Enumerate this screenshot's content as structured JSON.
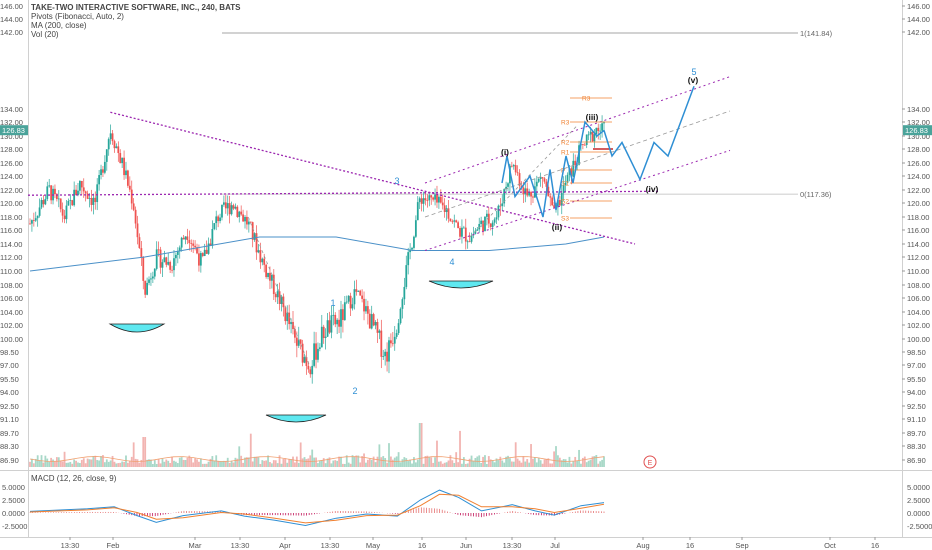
{
  "header": {
    "title": "TAKE-TWO INTERACTIVE SOFTWARE, INC., 240, BATS",
    "indicator1": "Pivots (Fibonacci, Auto, 2)",
    "indicator2": "MA (200, close)",
    "indicator3": "Vol (20)",
    "macd_label": "MACD (12, 26, close, 9)"
  },
  "colors": {
    "up": "#26a69a",
    "down": "#ef5350",
    "trendline": "#9c27b0",
    "ma": "#4a90c8",
    "projection": "#2f8fd4",
    "cup": "#5ee8f0",
    "pivot": "#f08030",
    "fib": "#777777"
  },
  "chart_data": [
    {
      "type": "candlestick",
      "title": "TAKE-TWO INTERACTIVE SOFTWARE, INC., 240, BATS",
      "ylim": [
        88.0,
        146.0
      ],
      "y_ticks": [
        "146.00",
        "144.00",
        "142.00",
        "134.00",
        "132.00",
        "130.00",
        "128.00",
        "126.00",
        "124.00",
        "122.00",
        "120.00",
        "118.00",
        "116.00",
        "114.00",
        "112.00",
        "110.00",
        "108.00",
        "106.00",
        "104.00",
        "102.00",
        "100.00",
        "98.50",
        "97.00",
        "95.50",
        "94.00",
        "92.50",
        "91.10",
        "89.70",
        "88.30",
        "86.90"
      ],
      "x_ticks": [
        "13:30",
        "Feb",
        "Mar",
        "13:30",
        "Apr",
        "13:30",
        "May",
        "16",
        "Jun",
        "13:30",
        "Jul",
        "Aug",
        "16",
        "Sep",
        "Oct",
        "16"
      ],
      "last_price": "126.83",
      "price_path": [
        {
          "t": 0,
          "p": 113
        },
        {
          "t": 5,
          "p": 118
        },
        {
          "t": 9,
          "p": 114
        },
        {
          "t": 13,
          "p": 119
        },
        {
          "t": 17,
          "p": 116
        },
        {
          "t": 21,
          "p": 127
        },
        {
          "t": 24,
          "p": 122
        },
        {
          "t": 27,
          "p": 116
        },
        {
          "t": 30,
          "p": 103
        },
        {
          "t": 33,
          "p": 108
        },
        {
          "t": 37,
          "p": 107
        },
        {
          "t": 41,
          "p": 112
        },
        {
          "t": 45,
          "p": 107
        },
        {
          "t": 49,
          "p": 114
        },
        {
          "t": 53,
          "p": 116
        },
        {
          "t": 57,
          "p": 113
        },
        {
          "t": 61,
          "p": 107
        },
        {
          "t": 65,
          "p": 102
        },
        {
          "t": 69,
          "p": 97
        },
        {
          "t": 73,
          "p": 94
        },
        {
          "t": 77,
          "p": 98
        },
        {
          "t": 81,
          "p": 99
        },
        {
          "t": 85,
          "p": 103
        },
        {
          "t": 89,
          "p": 99
        },
        {
          "t": 93,
          "p": 95
        },
        {
          "t": 96,
          "p": 99
        },
        {
          "t": 99,
          "p": 108
        },
        {
          "t": 102,
          "p": 117
        },
        {
          "t": 106,
          "p": 116
        },
        {
          "t": 109,
          "p": 115
        },
        {
          "t": 112,
          "p": 112
        },
        {
          "t": 115,
          "p": 111
        },
        {
          "t": 118,
          "p": 113
        },
        {
          "t": 122,
          "p": 114
        },
        {
          "t": 126,
          "p": 122
        },
        {
          "t": 130,
          "p": 117
        },
        {
          "t": 134,
          "p": 120
        },
        {
          "t": 137,
          "p": 114
        },
        {
          "t": 140,
          "p": 119
        },
        {
          "t": 144,
          "p": 124
        },
        {
          "t": 148,
          "p": 127
        },
        {
          "t": 150,
          "p": 126.8
        }
      ],
      "ma200": [
        [
          0,
          106
        ],
        [
          30,
          108
        ],
        [
          60,
          111
        ],
        [
          80,
          111
        ],
        [
          100,
          109
        ],
        [
          120,
          109
        ],
        [
          140,
          110
        ],
        [
          150,
          111
        ]
      ],
      "projection_wave": [
        [
          "2026-07-20",
          126.8
        ],
        [
          "2026-07-22",
          123
        ],
        [
          "2026-07-25",
          125
        ],
        [
          "2026-08-01",
          119.5
        ],
        [
          "2026-08-08",
          125
        ],
        [
          "2026-08-14",
          123
        ],
        [
          "2026-08-23",
          133.5
        ]
      ],
      "fib_levels": [
        {
          "label": "1(141.84)",
          "value": 141.84
        },
        {
          "label": "0(117.36)",
          "value": 117.36
        }
      ],
      "pivot_labels": [
        "R3",
        "R3",
        "R2",
        "R1",
        "P",
        "S1",
        "S2",
        "S3"
      ],
      "wave_labels": [
        {
          "text": "1",
          "kind": "blue"
        },
        {
          "text": "2",
          "kind": "blue"
        },
        {
          "text": "3",
          "kind": "blue"
        },
        {
          "text": "4",
          "kind": "blue"
        },
        {
          "text": "5",
          "kind": "blue"
        },
        {
          "text": "(i)",
          "kind": "black"
        },
        {
          "text": "(ii)",
          "kind": "black"
        },
        {
          "text": "(iii)",
          "kind": "black"
        },
        {
          "text": "(iv)",
          "kind": "black"
        },
        {
          "text": "(v)",
          "kind": "black"
        }
      ],
      "earnings_marker": "E"
    },
    {
      "type": "line",
      "title": "MACD (12, 26, close, 9)",
      "ylim": [
        -3.5,
        5.5
      ],
      "y_ticks": [
        "5.0000",
        "2.5000",
        "0.0000",
        "-2.5000"
      ],
      "macd": [
        [
          0,
          0.3
        ],
        [
          15,
          0.8
        ],
        [
          22,
          1.2
        ],
        [
          28,
          -0.5
        ],
        [
          33,
          -1.8
        ],
        [
          40,
          -0.5
        ],
        [
          50,
          0.4
        ],
        [
          56,
          -0.6
        ],
        [
          64,
          -1.4
        ],
        [
          72,
          -2.4
        ],
        [
          80,
          -1.0
        ],
        [
          88,
          -0.2
        ],
        [
          96,
          -0.6
        ],
        [
          102,
          2.5
        ],
        [
          107,
          4.4
        ],
        [
          112,
          3.0
        ],
        [
          118,
          0.4
        ],
        [
          126,
          1.6
        ],
        [
          132,
          0.4
        ],
        [
          137,
          -0.4
        ],
        [
          144,
          1.4
        ],
        [
          150,
          2.0
        ]
      ],
      "signal": [
        [
          0,
          0.2
        ],
        [
          15,
          0.6
        ],
        [
          22,
          1.0
        ],
        [
          28,
          0.1
        ],
        [
          33,
          -1.2
        ],
        [
          40,
          -0.9
        ],
        [
          50,
          0.1
        ],
        [
          56,
          -0.2
        ],
        [
          64,
          -1.0
        ],
        [
          72,
          -1.9
        ],
        [
          80,
          -1.4
        ],
        [
          88,
          -0.5
        ],
        [
          96,
          -0.4
        ],
        [
          102,
          1.4
        ],
        [
          107,
          3.6
        ],
        [
          112,
          3.4
        ],
        [
          118,
          1.2
        ],
        [
          126,
          1.2
        ],
        [
          132,
          0.8
        ],
        [
          137,
          0.1
        ],
        [
          144,
          0.9
        ],
        [
          150,
          1.7
        ]
      ]
    }
  ]
}
